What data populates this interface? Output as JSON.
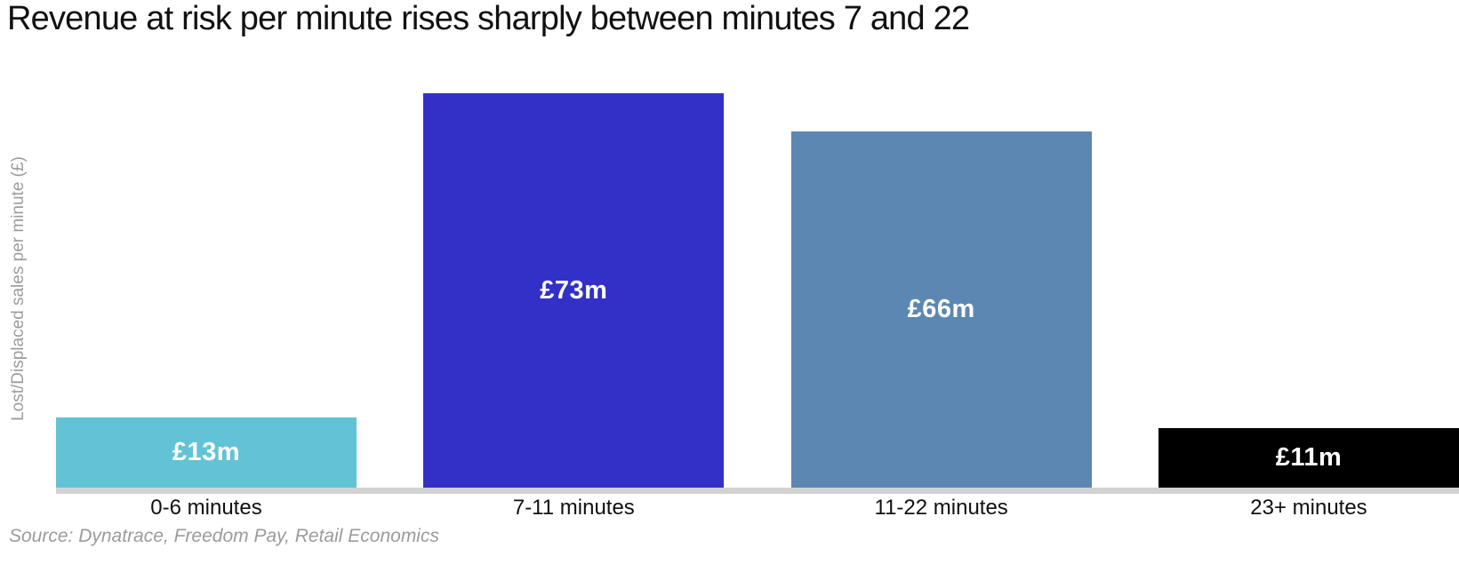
{
  "header": {
    "title": "Revenue at risk per minute rises sharply between minutes 7 and 22"
  },
  "chart_data": {
    "type": "bar",
    "title": "Revenue at risk per minute rises sharply between minutes 7 and 22",
    "categories": [
      "0-6 minutes",
      "7-11 minutes",
      "11-22 minutes",
      "23+ minutes"
    ],
    "values": [
      13,
      73,
      66,
      11
    ],
    "value_labels": [
      "£13m",
      "£73m",
      "£66m",
      "£11m"
    ],
    "bar_colors": [
      "#63C3D6",
      "#3330C8",
      "#5B87B2",
      "#000000"
    ],
    "value_label_color": "#FFFFFF",
    "baseline_color": "#D2D2D2",
    "xlabel": "",
    "ylabel": "Lost/Displaced sales per minute (£)",
    "ylim": [
      0,
      73
    ],
    "grid": false,
    "legend": false,
    "value_label_position": "center-of-bar"
  },
  "footer": {
    "source": "Source: Dynatrace, Freedom Pay, Retail Economics"
  }
}
